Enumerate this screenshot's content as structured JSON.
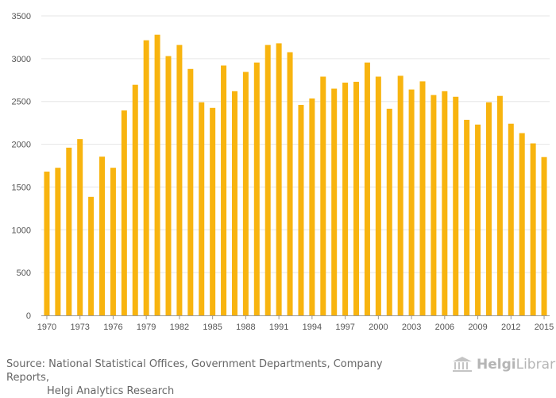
{
  "colors": {
    "bar": "#F8B40F",
    "grid": "#e6e6e6",
    "axis": "#999999",
    "text": "#555555"
  },
  "chart_data": {
    "type": "bar",
    "title": "",
    "xlabel": "",
    "ylabel": "",
    "ylim": [
      0,
      3500
    ],
    "yticks": [
      0,
      500,
      1000,
      1500,
      2000,
      2500,
      3000,
      3500
    ],
    "xtick_labels": [
      "1970",
      "1973",
      "1976",
      "1979",
      "1982",
      "1985",
      "1988",
      "1991",
      "1994",
      "1997",
      "2000",
      "2003",
      "2006",
      "2009",
      "2012",
      "2015"
    ],
    "categories": [
      "1970",
      "1971",
      "1972",
      "1973",
      "1974",
      "1975",
      "1976",
      "1977",
      "1978",
      "1979",
      "1980",
      "1981",
      "1982",
      "1983",
      "1984",
      "1985",
      "1986",
      "1987",
      "1988",
      "1989",
      "1990",
      "1991",
      "1992",
      "1993",
      "1994",
      "1995",
      "1996",
      "1997",
      "1998",
      "1999",
      "2000",
      "2001",
      "2002",
      "2003",
      "2004",
      "2005",
      "2006",
      "2007",
      "2008",
      "2009",
      "2010",
      "2011",
      "2012",
      "2013",
      "2014",
      "2015"
    ],
    "values": [
      1680,
      1725,
      1960,
      2060,
      1385,
      1855,
      1725,
      2395,
      2695,
      3215,
      3280,
      3030,
      3160,
      2880,
      2490,
      2425,
      2920,
      2620,
      2845,
      2955,
      3160,
      3180,
      3075,
      2460,
      2535,
      2790,
      2650,
      2720,
      2730,
      2955,
      2790,
      2415,
      2800,
      2640,
      2735,
      2575,
      2620,
      2555,
      2285,
      2230,
      2490,
      2565,
      2240,
      2130,
      2010,
      1850
    ],
    "grid": true
  },
  "footer": {
    "source_line1": "Source: National Statistical Offices, Government Departments, Company Reports,",
    "source_line2": "Helgi Analytics Research"
  },
  "logo": {
    "part1": "Helgi",
    "part2": "Library."
  }
}
